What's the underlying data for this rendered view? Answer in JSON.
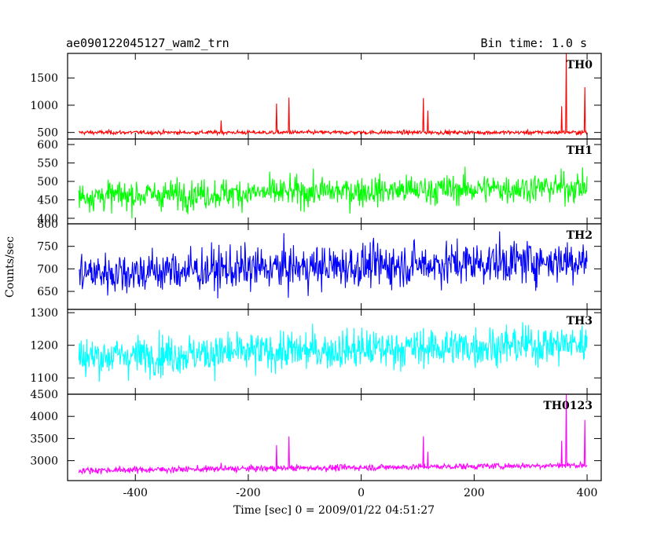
{
  "header": {
    "title": "ae090122045127_wam2_trn",
    "bin_time": "Bin time: 1.0 s"
  },
  "chart_data": {
    "type": "line",
    "xlabel": "Time [sec] 0 = 2009/01/22 04:51:27",
    "ylabel": "Counts/sec",
    "xlim": [
      -520,
      425
    ],
    "xticks": [
      -400,
      -200,
      0,
      200,
      400
    ],
    "x_range": [
      -500,
      400
    ],
    "panels": [
      {
        "name": "TH0",
        "color": "#ff0000",
        "ylim": [
          380,
          1950
        ],
        "yticks": [
          500,
          1000,
          1500
        ],
        "baseline": 500,
        "noise": 18,
        "trend": 0,
        "spikes": [
          {
            "x": -248,
            "y": 720
          },
          {
            "x": -150,
            "y": 1030
          },
          {
            "x": -128,
            "y": 1140
          },
          {
            "x": 110,
            "y": 1130
          },
          {
            "x": 118,
            "y": 900
          },
          {
            "x": 355,
            "y": 980
          },
          {
            "x": 363,
            "y": 1950
          },
          {
            "x": 396,
            "y": 1330
          }
        ]
      },
      {
        "name": "TH1",
        "color": "#00ff00",
        "ylim": [
          385,
          615
        ],
        "yticks": [
          400,
          450,
          500,
          550,
          600
        ],
        "baseline": 460,
        "noise": 20,
        "trend": 25,
        "spikes": []
      },
      {
        "name": "TH2",
        "color": "#0000ff",
        "ylim": [
          610,
          800
        ],
        "yticks": [
          650,
          700,
          750,
          800
        ],
        "baseline": 690,
        "noise": 24,
        "trend": 30,
        "spikes": []
      },
      {
        "name": "TH3",
        "color": "#00ffff",
        "ylim": [
          1050,
          1310
        ],
        "yticks": [
          1100,
          1200,
          1300
        ],
        "baseline": 1165,
        "noise": 30,
        "trend": 40,
        "spikes": []
      },
      {
        "name": "TH0123",
        "color": "#ff00ff",
        "ylim": [
          2550,
          4500
        ],
        "yticks": [
          3000,
          3500,
          4000,
          4500
        ],
        "baseline": 2780,
        "noise": 35,
        "trend": 120,
        "spikes": [
          {
            "x": -248,
            "y": 2950
          },
          {
            "x": -150,
            "y": 3350
          },
          {
            "x": -128,
            "y": 3550
          },
          {
            "x": 110,
            "y": 3550
          },
          {
            "x": 118,
            "y": 3200
          },
          {
            "x": 355,
            "y": 3450
          },
          {
            "x": 363,
            "y": 4500
          },
          {
            "x": 396,
            "y": 3920
          }
        ]
      }
    ]
  }
}
